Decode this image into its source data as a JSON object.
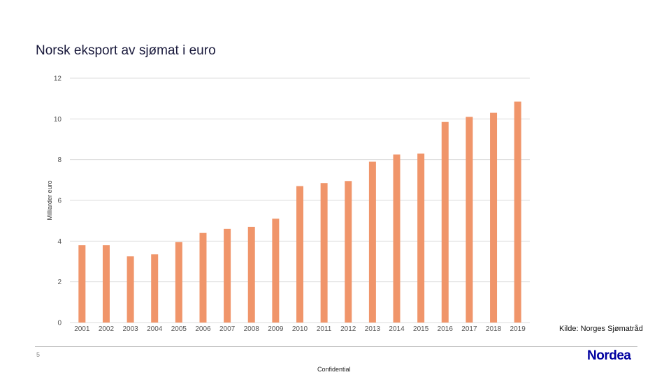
{
  "slide": {
    "title": "Norsk eksport av sjømat i euro",
    "source": "Kilde: Norges Sjømatråd",
    "page_number": "5",
    "confidential": "Confidential",
    "logo": "Nordea",
    "logo_color": "#0000a0"
  },
  "chart_data": {
    "type": "bar",
    "title": "Norsk eksport av sjømat i euro",
    "xlabel": "",
    "ylabel": "Milliarder euro",
    "ylim": [
      0,
      12
    ],
    "yticks": [
      "0",
      "2",
      "4",
      "6",
      "8",
      "10",
      "12"
    ],
    "grid": true,
    "bar_color": "#f0956a",
    "categories": [
      "2001",
      "2002",
      "2003",
      "2004",
      "2005",
      "2006",
      "2007",
      "2008",
      "2009",
      "2010",
      "2011",
      "2012",
      "2013",
      "2014",
      "2015",
      "2016",
      "2017",
      "2018",
      "2019"
    ],
    "values": [
      3.8,
      3.8,
      3.25,
      3.35,
      3.95,
      4.4,
      4.6,
      4.7,
      5.1,
      6.7,
      6.85,
      6.95,
      7.9,
      8.25,
      8.3,
      9.85,
      10.1,
      10.3,
      10.85
    ]
  }
}
